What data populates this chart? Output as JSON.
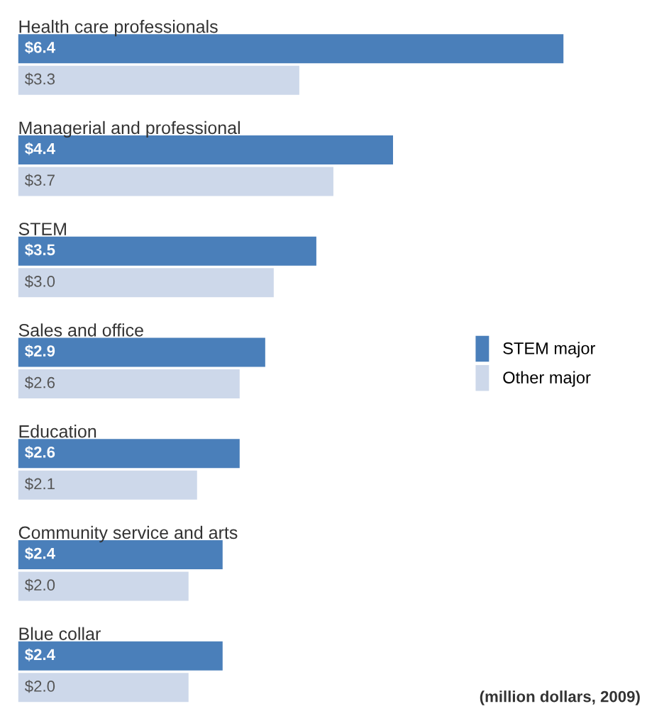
{
  "chart_data": {
    "type": "bar",
    "orientation": "horizontal",
    "categories": [
      "Health care professionals",
      "Managerial and professional",
      "STEM",
      "Sales and office",
      "Education",
      "Community service and arts",
      "Blue collar"
    ],
    "series": [
      {
        "name": "STEM major",
        "color": "#4a7fba",
        "values": [
          6.4,
          4.4,
          3.5,
          2.9,
          2.6,
          2.4,
          2.4
        ],
        "value_labels": [
          "$6.4",
          "$4.4",
          "$3.5",
          "$2.9",
          "$2.6",
          "$2.4",
          "$2.4"
        ]
      },
      {
        "name": "Other major",
        "color": "#cdd8ea",
        "values": [
          3.3,
          3.7,
          3.0,
          2.6,
          2.1,
          2.0,
          2.0
        ],
        "value_labels": [
          "$3.3",
          "$3.7",
          "$3.0",
          "$2.6",
          "$2.1",
          "$2.0",
          "$2.0"
        ]
      }
    ],
    "data_labels": true,
    "legend": "right",
    "annotations": [
      "(million dollars, 2009)"
    ]
  }
}
